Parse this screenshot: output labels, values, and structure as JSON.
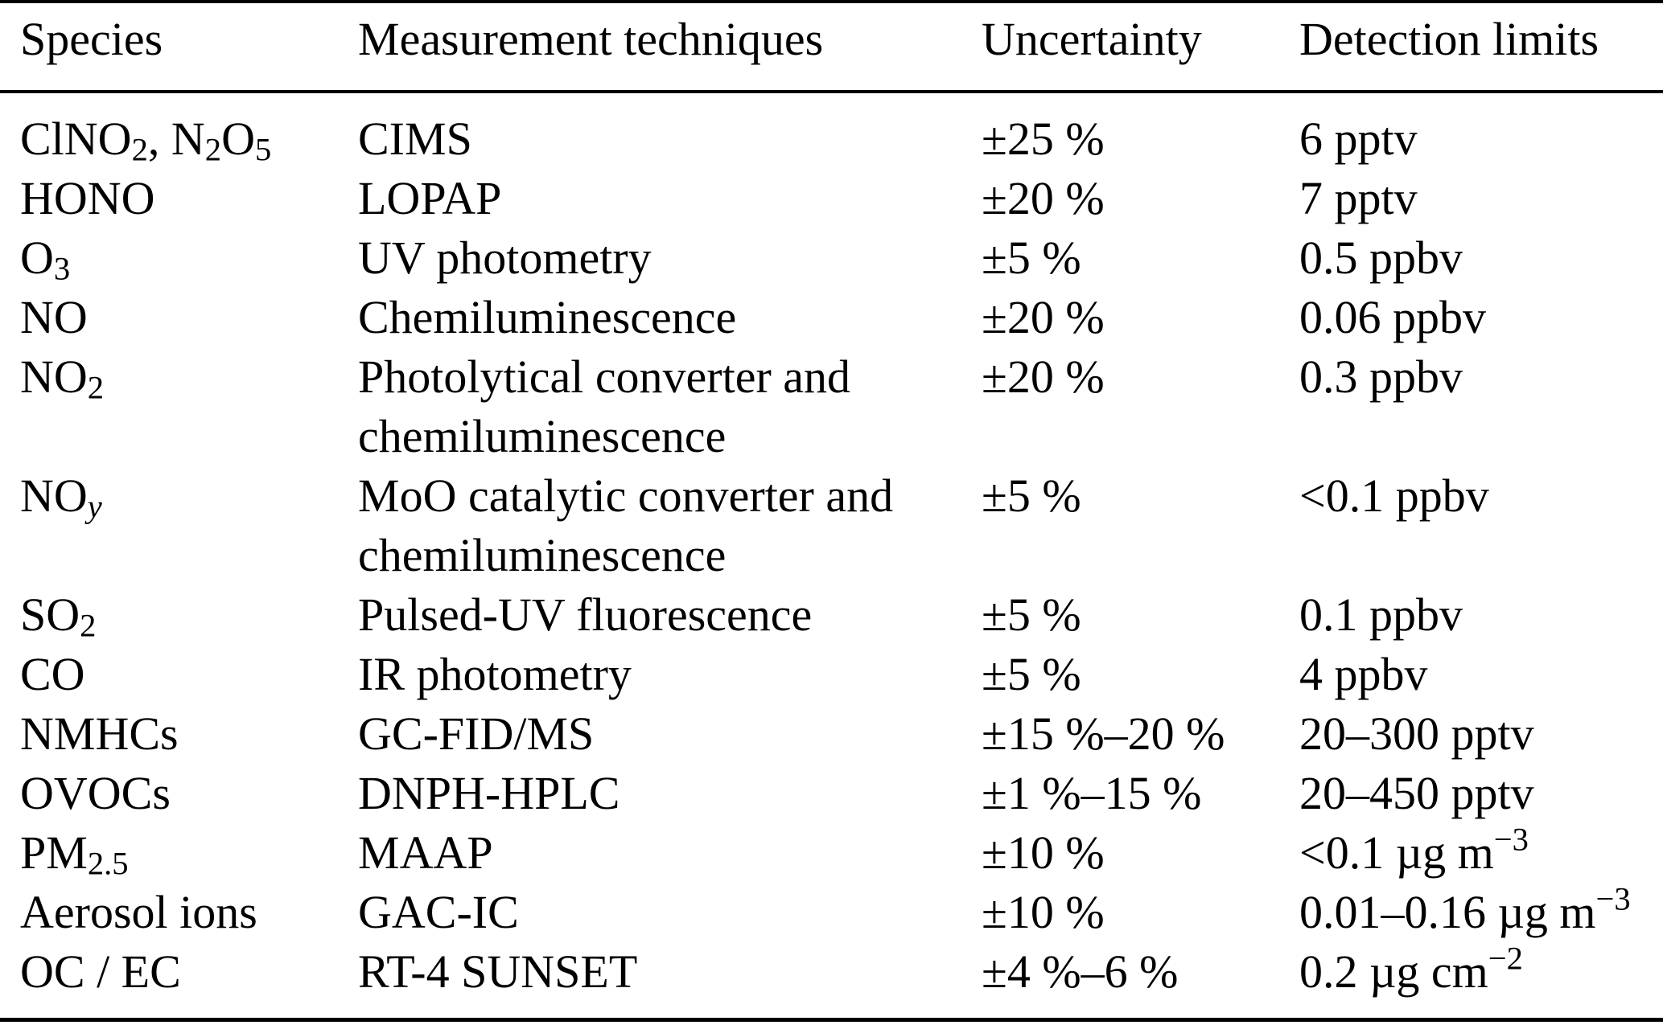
{
  "page": {
    "background_color": "#ffffff",
    "text_color": "#000000"
  },
  "table": {
    "headers": [
      {
        "label": "Species"
      },
      {
        "label": "Measurement techniques"
      },
      {
        "label": "Uncertainty"
      },
      {
        "label": "Detection limits"
      }
    ],
    "rows": [
      {
        "species": [
          "ClNO",
          {
            "sub": "2"
          },
          ", N",
          {
            "sub": "2"
          },
          "O",
          {
            "sub": "5"
          }
        ],
        "technique_lines": [
          "CIMS"
        ],
        "uncertainty": "±25 %",
        "detection": [
          "6 pptv"
        ]
      },
      {
        "species": [
          "HONO"
        ],
        "technique_lines": [
          "LOPAP"
        ],
        "uncertainty": "±20 %",
        "detection": [
          "7 pptv"
        ]
      },
      {
        "species": [
          "O",
          {
            "sub": "3"
          }
        ],
        "technique_lines": [
          "UV photometry"
        ],
        "uncertainty": "±5 %",
        "detection": [
          "0.5 ppbv"
        ]
      },
      {
        "species": [
          "NO"
        ],
        "technique_lines": [
          "Chemiluminescence"
        ],
        "uncertainty": "±20 %",
        "detection": [
          "0.06 ppbv"
        ]
      },
      {
        "species": [
          "NO",
          {
            "sub": "2"
          }
        ],
        "technique_lines": [
          "Photolytical converter and",
          "chemiluminescence"
        ],
        "uncertainty": "±20 %",
        "detection": [
          "0.3 ppbv"
        ]
      },
      {
        "species": [
          "NO",
          {
            "subi": "y"
          }
        ],
        "technique_lines": [
          "MoO catalytic converter and",
          "chemiluminescence"
        ],
        "uncertainty": "±5 %",
        "detection": [
          "<0.1 ppbv"
        ]
      },
      {
        "species": [
          "SO",
          {
            "sub": "2"
          }
        ],
        "technique_lines": [
          "Pulsed-UV fluorescence"
        ],
        "uncertainty": "±5 %",
        "detection": [
          "0.1 ppbv"
        ]
      },
      {
        "species": [
          "CO"
        ],
        "technique_lines": [
          "IR photometry"
        ],
        "uncertainty": "±5 %",
        "detection": [
          "4 ppbv"
        ]
      },
      {
        "species": [
          "NMHCs"
        ],
        "technique_lines": [
          "GC-FID/MS"
        ],
        "uncertainty": "±15 %–20 %",
        "detection": [
          "20–300 pptv"
        ]
      },
      {
        "species": [
          "OVOCs"
        ],
        "technique_lines": [
          "DNPH-HPLC"
        ],
        "uncertainty": "±1 %–15 %",
        "detection": [
          "20–450 pptv"
        ]
      },
      {
        "species": [
          "PM",
          {
            "sub": "2.5"
          }
        ],
        "technique_lines": [
          "MAAP"
        ],
        "uncertainty": "±10 %",
        "detection": [
          "<0.1 µg m",
          {
            "sup": "−3"
          }
        ]
      },
      {
        "species": [
          "Aerosol ions"
        ],
        "technique_lines": [
          "GAC-IC"
        ],
        "uncertainty": "±10 %",
        "detection": [
          "0.01–0.16 µg m",
          {
            "sup": "−3"
          }
        ]
      },
      {
        "species": [
          "OC / EC"
        ],
        "technique_lines": [
          "RT-4 SUNSET"
        ],
        "uncertainty": "±4 %–6 %",
        "detection": [
          "0.2 µg cm",
          {
            "sup": "−2"
          }
        ]
      }
    ]
  }
}
